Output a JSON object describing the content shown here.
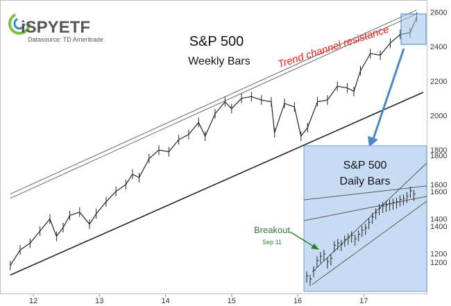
{
  "logo": {
    "brand": "iSPYETF",
    "source": "Datasource: TD Ameritrade"
  },
  "chart_data": [
    {
      "type": "line",
      "title": "S&P 500",
      "subtitle": "Weekly Bars",
      "xlabel": "",
      "ylabel": "",
      "x_ticks": [
        "12",
        "13",
        "14",
        "15",
        "16",
        "17"
      ],
      "y_ticks": [
        1200,
        1400,
        1600,
        1800,
        2000,
        2200,
        2400,
        2600
      ],
      "xlim": [
        2011.6,
        2017.9
      ],
      "ylim": [
        1000,
        2650
      ],
      "grid": false,
      "legend": "none",
      "annotations": [
        {
          "text": "Trend channel resistance",
          "color": "#e02020"
        }
      ],
      "trendlines": {
        "resistance_upper": [
          [
            2011.65,
            1545
          ],
          [
            2017.8,
            2612
          ]
        ],
        "resistance_lower": [
          [
            2011.65,
            1520
          ],
          [
            2017.8,
            2590
          ]
        ],
        "support": [
          [
            2011.65,
            1075
          ],
          [
            2017.9,
            2135
          ]
        ]
      },
      "series": [
        {
          "x": [
            2011.65,
            2011.8,
            2011.95,
            2012.1,
            2012.25,
            2012.35,
            2012.45,
            2012.55,
            2012.7,
            2012.85,
            2012.95,
            2013.1,
            2013.25,
            2013.4,
            2013.5,
            2013.6,
            2013.75,
            2013.9,
            2014.05,
            2014.2,
            2014.35,
            2014.5,
            2014.6,
            2014.75,
            2014.9,
            2015.0,
            2015.15,
            2015.3,
            2015.45,
            2015.6,
            2015.65,
            2015.8,
            2015.95,
            2016.05,
            2016.15,
            2016.3,
            2016.45,
            2016.6,
            2016.75,
            2016.85,
            2016.95,
            2017.1,
            2017.25,
            2017.4,
            2017.55,
            2017.7,
            2017.8
          ],
          "values": [
            1130,
            1220,
            1260,
            1330,
            1400,
            1300,
            1350,
            1420,
            1440,
            1370,
            1430,
            1500,
            1560,
            1600,
            1660,
            1640,
            1750,
            1800,
            1790,
            1860,
            1890,
            1960,
            1880,
            2010,
            2080,
            2040,
            2100,
            2110,
            2090,
            2080,
            1900,
            2070,
            2050,
            1880,
            1930,
            2080,
            2090,
            2170,
            2160,
            2140,
            2260,
            2360,
            2350,
            2420,
            2470,
            2480,
            2570
          ]
        }
      ]
    },
    {
      "type": "line",
      "title": "S&P 500",
      "subtitle": "Daily Bars",
      "xlabel": "",
      "ylabel": "",
      "annotations": [
        {
          "text": "Breakout",
          "color": "#2e7d32"
        },
        {
          "text": "Sep 11",
          "color": "#2e7d32"
        }
      ],
      "xlim": [
        0,
        1
      ],
      "ylim": [
        0,
        1
      ],
      "series": [
        {
          "x": [
            0.0,
            0.03,
            0.06,
            0.09,
            0.12,
            0.15,
            0.18,
            0.21,
            0.24,
            0.27,
            0.3,
            0.33,
            0.36,
            0.39,
            0.42,
            0.45,
            0.48,
            0.51,
            0.54,
            0.57,
            0.6,
            0.63,
            0.66,
            0.69,
            0.72,
            0.75,
            0.78,
            0.81,
            0.84,
            0.87,
            0.9,
            0.93
          ],
          "values": [
            0.08,
            0.05,
            0.13,
            0.22,
            0.26,
            0.28,
            0.21,
            0.24,
            0.36,
            0.38,
            0.37,
            0.41,
            0.43,
            0.45,
            0.42,
            0.46,
            0.5,
            0.52,
            0.57,
            0.62,
            0.66,
            0.7,
            0.72,
            0.73,
            0.74,
            0.75,
            0.76,
            0.78,
            0.79,
            0.81,
            0.86,
            0.83
          ]
        }
      ]
    }
  ]
}
